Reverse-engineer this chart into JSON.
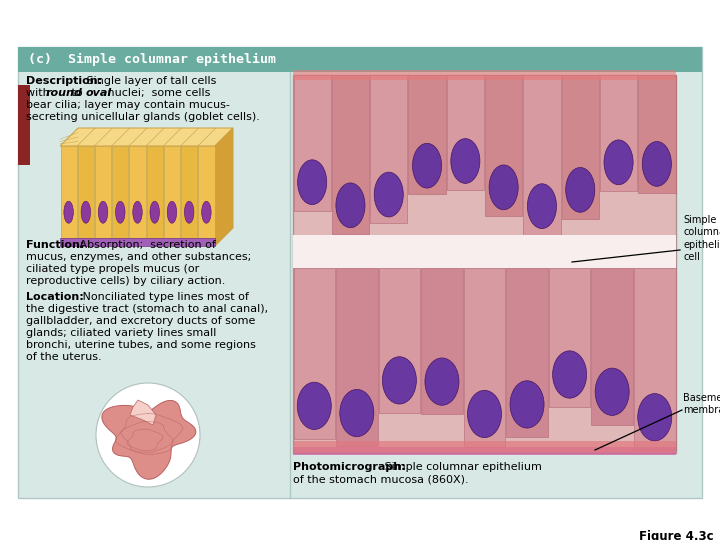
{
  "title": "(c)  Simple columnar epithelium",
  "header_bg": "#6aada0",
  "header_text_color": "#ffffff",
  "panel_bg": "#d8e8e5",
  "outer_bg": "#ffffff",
  "red_tab_color": "#8b2525",
  "border_color": "#b0c8c5",
  "micro_border": "#ccaaaa",
  "description_bold": "Description:",
  "desc_line1": " Single layer of tall cells",
  "desc_line2_pre": "with ",
  "desc_round": "round",
  "desc_mid": " to  ",
  "desc_oval": "oval",
  "desc_line2_post": " nuclei;  some cells",
  "desc_line3": "bear cilia; layer may contain mucus-",
  "desc_line4": "secreting unicellular glands (goblet cells).",
  "function_bold": "Function:",
  "func_line1": " Absorption;  secretion of",
  "func_line2": "mucus, enzymes, and other substances;",
  "func_line3": "ciliated type propels mucus (or",
  "func_line4": "reproductive cells) by ciliary action.",
  "location_bold": "Location:",
  "loc_line1": " Nonciliated type lines most of",
  "loc_line2": "the digestive tract (stomach to anal canal),",
  "loc_line3": "gallbladder, and excretory ducts of some",
  "loc_line4": "glands; ciliated variety lines small",
  "loc_line5": "bronchi, uterine tubes, and some regions",
  "loc_line6": "of the uterus.",
  "photomicrograph_bold": "Photomicrograph:",
  "photo_line1": " Simple columnar epithelium",
  "photo_line2": "of the stomach mucosa (860X).",
  "label_epithelial": "Simple\ncolumnar\nepithelial\ncell",
  "label_basement": "Basement\nmembrane",
  "figure_label": "Figure 4.3c",
  "font_size_body": 8.0,
  "font_size_header": 9.5,
  "font_size_fig": 8.5
}
